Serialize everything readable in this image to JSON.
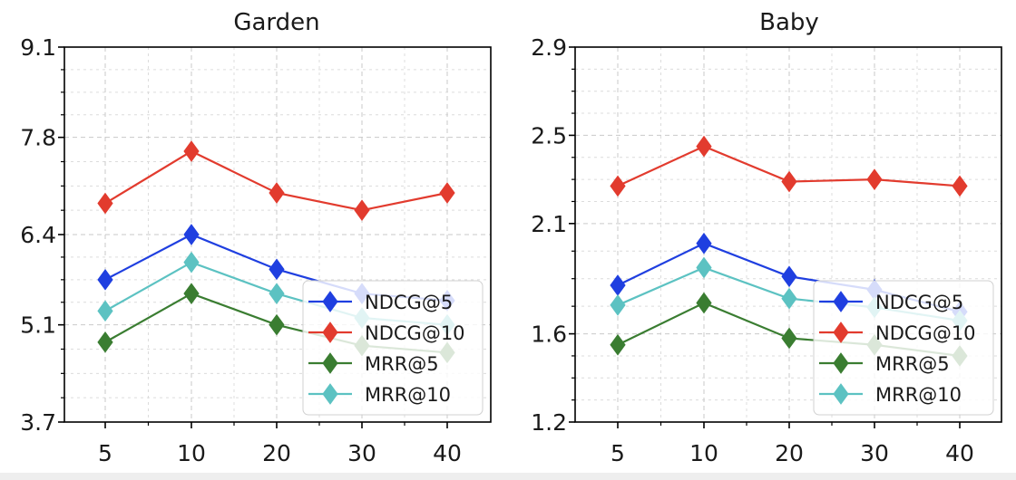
{
  "colors": {
    "ndcg5": "#1f3fe0",
    "ndcg10": "#e23b2e",
    "mrr5": "#3a7d31",
    "mrr10": "#5cc2c2"
  },
  "chart_data": [
    {
      "type": "line",
      "title": "Garden",
      "xlabel": "",
      "ylabel": "",
      "categories": [
        "5",
        "10",
        "20",
        "30",
        "40"
      ],
      "yticks": [
        "3.7",
        "5.1",
        "6.4",
        "7.8",
        "9.1"
      ],
      "ylim": [
        3.7,
        9.1
      ],
      "grid": true,
      "legend": "bottom-right",
      "series": [
        {
          "name": "NDCG@5",
          "color_key": "ndcg5",
          "values": [
            5.75,
            6.4,
            5.9,
            5.55,
            5.45
          ]
        },
        {
          "name": "NDCG@10",
          "color_key": "ndcg10",
          "values": [
            6.85,
            7.6,
            7.0,
            6.75,
            7.0
          ]
        },
        {
          "name": "MRR@5",
          "color_key": "mrr5",
          "values": [
            4.85,
            5.55,
            5.1,
            4.8,
            4.7
          ]
        },
        {
          "name": "MRR@10",
          "color_key": "mrr10",
          "values": [
            5.3,
            6.0,
            5.55,
            5.2,
            5.1
          ]
        }
      ]
    },
    {
      "type": "line",
      "title": "Baby",
      "xlabel": "",
      "ylabel": "",
      "categories": [
        "5",
        "10",
        "20",
        "30",
        "40"
      ],
      "yticks": [
        "1.2",
        "1.6",
        "2.1",
        "2.5",
        "2.9"
      ],
      "ylim": [
        1.2,
        2.9
      ],
      "grid": true,
      "legend": "bottom-right",
      "series": [
        {
          "name": "NDCG@5",
          "color_key": "ndcg5",
          "values": [
            1.82,
            2.01,
            1.86,
            1.8,
            1.7
          ]
        },
        {
          "name": "NDCG@10",
          "color_key": "ndcg10",
          "values": [
            2.27,
            2.45,
            2.29,
            2.3,
            2.27
          ]
        },
        {
          "name": "MRR@5",
          "color_key": "mrr5",
          "values": [
            1.55,
            1.74,
            1.58,
            1.55,
            1.5
          ]
        },
        {
          "name": "MRR@10",
          "color_key": "mrr10",
          "values": [
            1.73,
            1.9,
            1.76,
            1.72,
            1.66
          ]
        }
      ]
    }
  ]
}
